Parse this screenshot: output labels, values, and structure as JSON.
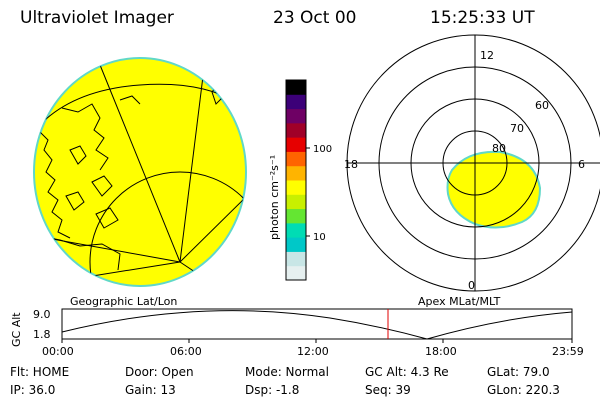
{
  "header": {
    "title": "Ultraviolet Imager",
    "date": "23 Oct 00",
    "time": "15:25:33 UT"
  },
  "colorbar": {
    "unit_label": "photon cm⁻²s⁻¹",
    "ticks": [
      "100",
      "10"
    ],
    "colors": [
      "#e6f0f0",
      "#c8e6e6",
      "#00c8c8",
      "#00dcb4",
      "#64e632",
      "#c8f000",
      "#ffff00",
      "#ffb400",
      "#ff6400",
      "#e60000",
      "#a00028",
      "#6e0064",
      "#3c0078",
      "#000000"
    ]
  },
  "panels": {
    "geo_label": "Geographic Lat/Lon",
    "apex_label": "Apex MLat/MLT",
    "fill_color": "#ffff00",
    "edge_color": "#60d8c8"
  },
  "polar": {
    "mlt_labels": [
      "12",
      "18",
      "6",
      "0"
    ],
    "lat_labels": [
      "60",
      "70",
      "80"
    ]
  },
  "altitude": {
    "axis_label": "GC Alt",
    "y_ticks": [
      "9.0",
      "1.8"
    ],
    "x_ticks": [
      "00:00",
      "06:00",
      "12:00",
      "18:00",
      "23:59"
    ],
    "marker_color": "#e00000"
  },
  "info": {
    "flt": "Flt: HOME",
    "door": "Door: Open",
    "mode": "Mode: Normal",
    "gc_alt": "GC Alt: 4.3 Re",
    "glat": "GLat:  79.0",
    "ip": "IP: 36.0",
    "gain": "Gain: 13",
    "dsp": "Dsp:   -1.8",
    "seq": "Seq: 39",
    "glon": "GLon: 220.3"
  }
}
